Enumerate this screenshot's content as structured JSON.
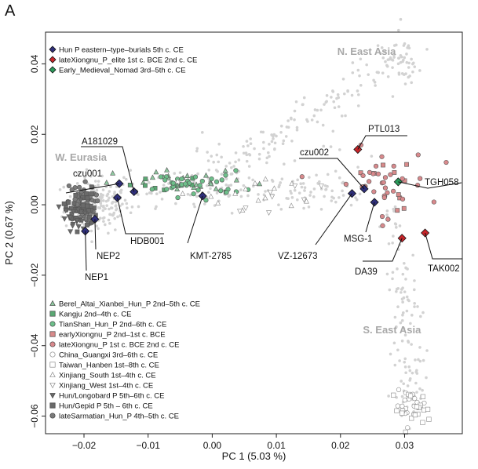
{
  "panel_letter": "A",
  "chart_data": {
    "type": "scatter",
    "xlabel": "PC 1 (5.03 %)",
    "ylabel": "PC 2 (0.67 %)",
    "xlim": [
      -0.026,
      0.039
    ],
    "ylim": [
      -0.065,
      0.049
    ],
    "xticks": [
      -0.02,
      -0.01,
      0.0,
      0.01,
      0.02,
      0.03
    ],
    "xtick_labels": [
      "−0.02",
      "−0.01",
      "0.00",
      "0.01",
      "0.02",
      "0.03"
    ],
    "yticks": [
      -0.06,
      -0.04,
      -0.02,
      0.0,
      0.02,
      0.04
    ],
    "ytick_labels": [
      "−0.06",
      "−0.04",
      "−0.02",
      "0.00",
      "0.02",
      "0.04"
    ],
    "region_labels": [
      {
        "text": "N. East Asia",
        "x": 0.0195,
        "y": 0.0425
      },
      {
        "text": "W. Eurasia",
        "x": -0.0245,
        "y": 0.0125
      },
      {
        "text": "S. East Asia",
        "x": 0.0235,
        "y": -0.0365
      }
    ],
    "legend_top": {
      "placement": "top-left",
      "entries": [
        {
          "label": "Hun P eastern–type–burials 5th c. CE",
          "marker": "diamond",
          "color": "#2f2f7a"
        },
        {
          "label": "lateXiongnu_P_elite 1st c. BCE 2nd c. CE",
          "marker": "diamond",
          "color": "#c8252a"
        },
        {
          "label": "Early_Medieval_Nomad 3rd–5th c. CE",
          "marker": "diamond",
          "color": "#2a9a5a"
        }
      ]
    },
    "legend_bottom": {
      "placement": "bottom-left",
      "entries": [
        {
          "label": "Berel_Altai_Xianbei_Hun_P 2nd–5th c. CE",
          "marker": "triangle",
          "color": "#8fc8a0"
        },
        {
          "label": "Kangju 2nd–4th c. CE",
          "marker": "square",
          "color": "#5aa873"
        },
        {
          "label": "TianShan_Hun_P 2nd–6th c. CE",
          "marker": "circle",
          "color": "#6dbf8a"
        },
        {
          "label": "earlyXiongnu_P 2nd–1st c. BCE",
          "marker": "square",
          "color": "#d88a8a"
        },
        {
          "label": "lateXiongnu_P 1st c. BCE 2nd c. CE",
          "marker": "circle",
          "color": "#d8898c"
        },
        {
          "label": "China_Guangxi 3rd–6th c. CE",
          "marker": "circle-open",
          "color": "#8a8a8a"
        },
        {
          "label": "Taiwan_Hanben 1st–8th c. CE",
          "marker": "square-open",
          "color": "#8a8a8a"
        },
        {
          "label": "Xinjiang_South 1st–4th c. CE",
          "marker": "triangle-open",
          "color": "#8a8a8a"
        },
        {
          "label": "Xinjiang_West 1st–4th c. CE",
          "marker": "triangle-down-open",
          "color": "#8a8a8a"
        },
        {
          "label": "Hun/Longobard P 5th–6th c. CE",
          "marker": "triangle-down",
          "color": "#6a6a6a"
        },
        {
          "label": "Hun/Gepid P 5th – 6th c. CE",
          "marker": "square",
          "color": "#6a6a6a"
        },
        {
          "label": "lateSarmatian_Hun_P 4th–5th c. CE",
          "marker": "circle",
          "color": "#7a7a7a"
        }
      ]
    },
    "highlighted_samples": [
      {
        "label": "czu001",
        "x": -0.0145,
        "y": 0.006,
        "group": "Hun P eastern–type–burials 5th c. CE"
      },
      {
        "label": "A181029",
        "x": -0.0122,
        "y": 0.0037,
        "group": "Hun P eastern–type–burials 5th c. CE"
      },
      {
        "label": "HDB001",
        "x": -0.0148,
        "y": 0.002,
        "group": "Hun P eastern–type–burials 5th c. CE"
      },
      {
        "label": "NEP2",
        "x": -0.0183,
        "y": -0.0041,
        "group": "Hun P eastern–type–burials 5th c. CE"
      },
      {
        "label": "NEP1",
        "x": -0.0198,
        "y": -0.0075,
        "group": "Hun P eastern–type–burials 5th c. CE"
      },
      {
        "label": "KMT-2785",
        "x": -0.0015,
        "y": 0.0025,
        "group": "Hun P eastern–type–burials 5th c. CE"
      },
      {
        "label": "czu002",
        "x": 0.0237,
        "y": 0.0045,
        "group": "Hun P eastern–type–burials 5th c. CE"
      },
      {
        "label": "VZ-12673",
        "x": 0.0218,
        "y": 0.0032,
        "group": "Hun P eastern–type–burials 5th c. CE"
      },
      {
        "label": "MSG-1",
        "x": 0.0253,
        "y": 0.0007,
        "group": "Hun P eastern–type–burials 5th c. CE"
      },
      {
        "label": "PTL013",
        "x": 0.0227,
        "y": 0.0157,
        "group": "lateXiongnu_P_elite 1st c. BCE 2nd c. CE"
      },
      {
        "label": "DA39",
        "x": 0.0296,
        "y": -0.0095,
        "group": "lateXiongnu_P_elite 1st c. BCE 2nd c. CE"
      },
      {
        "label": "TAK002",
        "x": 0.0332,
        "y": -0.008,
        "group": "lateXiongnu_P_elite 1st c. BCE 2nd c. CE"
      },
      {
        "label": "TGH058",
        "x": 0.029,
        "y": 0.0065,
        "group": "Early_Medieval_Nomad 3rd–5th c. CE"
      }
    ],
    "grid": false
  }
}
